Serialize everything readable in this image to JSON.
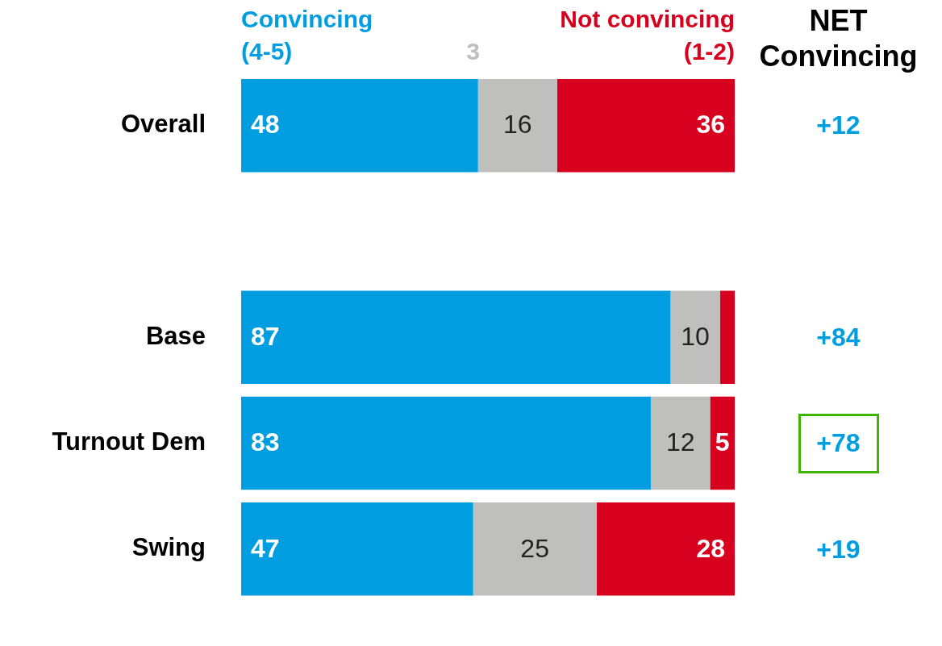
{
  "chart_data": {
    "type": "bar",
    "orientation": "horizontal",
    "stacked": true,
    "legend": "top",
    "categories": [
      "Overall",
      null,
      "Base",
      "Turnout Dem",
      "Swing"
    ],
    "series": [
      {
        "name": "Convincing (4-5)",
        "color": "#009ee0",
        "values": [
          48,
          null,
          87,
          83,
          47
        ],
        "value_labels": [
          "48",
          null,
          "87",
          "83",
          "47"
        ]
      },
      {
        "name": "3",
        "color": "#bfbfbe",
        "values": [
          16,
          null,
          10,
          12,
          25
        ],
        "value_labels": [
          "16",
          null,
          "10",
          "12",
          "25"
        ]
      },
      {
        "name": "Not convincing (1-2)",
        "color": "#d7001e",
        "values": [
          36,
          null,
          3,
          5,
          28
        ],
        "value_labels": [
          "36",
          null,
          null,
          "5",
          "28"
        ]
      }
    ],
    "annotations": [
      "NET Convincing",
      "+12",
      "+84",
      "+78",
      "+19"
    ]
  }
}
